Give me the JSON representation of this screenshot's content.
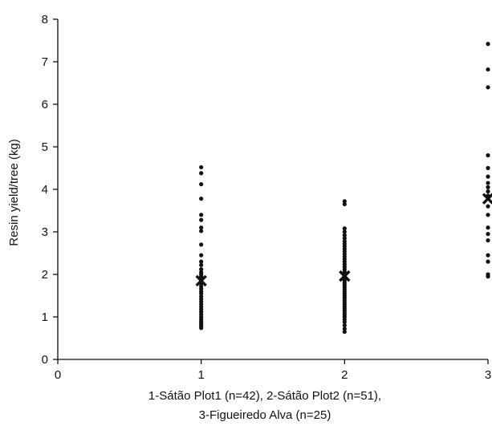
{
  "chart_data": {
    "type": "scatter",
    "xlabel_lines": [
      "1-Sátão Plot1 (n=42), 2-Sátão Plot2 (n=51),",
      "3-Figueiredo Alva (n=25)"
    ],
    "ylabel": "Resin yield/tree (kg)",
    "xlim": [
      0,
      3
    ],
    "ylim": [
      0,
      8
    ],
    "xticks": [
      0,
      1,
      2,
      3
    ],
    "yticks": [
      0,
      1,
      2,
      3,
      4,
      5,
      6,
      7,
      8
    ],
    "grid": false,
    "series": [
      {
        "x": 1,
        "values": [
          4.52,
          4.38,
          4.12,
          3.78,
          3.4,
          3.28,
          3.1,
          3.02,
          2.7,
          2.45,
          2.3,
          2.22,
          2.12,
          2.05,
          2.0,
          1.95,
          1.9,
          1.86,
          1.82,
          1.78,
          1.72,
          1.66,
          1.6,
          1.55,
          1.48,
          1.42,
          1.36,
          1.3,
          1.24,
          1.18,
          1.12,
          1.06,
          1.0,
          0.95,
          0.9,
          0.86,
          0.82,
          0.78,
          0.74
        ]
      },
      {
        "x": 2,
        "values": [
          3.72,
          3.65,
          3.08,
          3.0,
          2.92,
          2.85,
          2.78,
          2.72,
          2.66,
          2.6,
          2.54,
          2.48,
          2.42,
          2.36,
          2.3,
          2.24,
          2.18,
          2.12,
          2.06,
          2.0,
          1.95,
          1.9,
          1.85,
          1.8,
          1.75,
          1.7,
          1.65,
          1.6,
          1.55,
          1.5,
          1.45,
          1.4,
          1.35,
          1.3,
          1.25,
          1.2,
          1.15,
          1.1,
          1.05,
          1.0,
          0.94,
          0.88,
          0.8,
          0.72,
          0.65
        ]
      },
      {
        "x": 3,
        "values": [
          7.42,
          6.82,
          6.4,
          4.8,
          4.5,
          4.3,
          4.15,
          4.05,
          3.95,
          3.85,
          3.6,
          3.4,
          3.1,
          2.95,
          2.8,
          2.45,
          2.3,
          2.0,
          1.95
        ]
      }
    ],
    "means": [
      {
        "x": 1,
        "y": 1.85
      },
      {
        "x": 2,
        "y": 1.96
      },
      {
        "x": 3,
        "y": 3.78
      }
    ]
  }
}
